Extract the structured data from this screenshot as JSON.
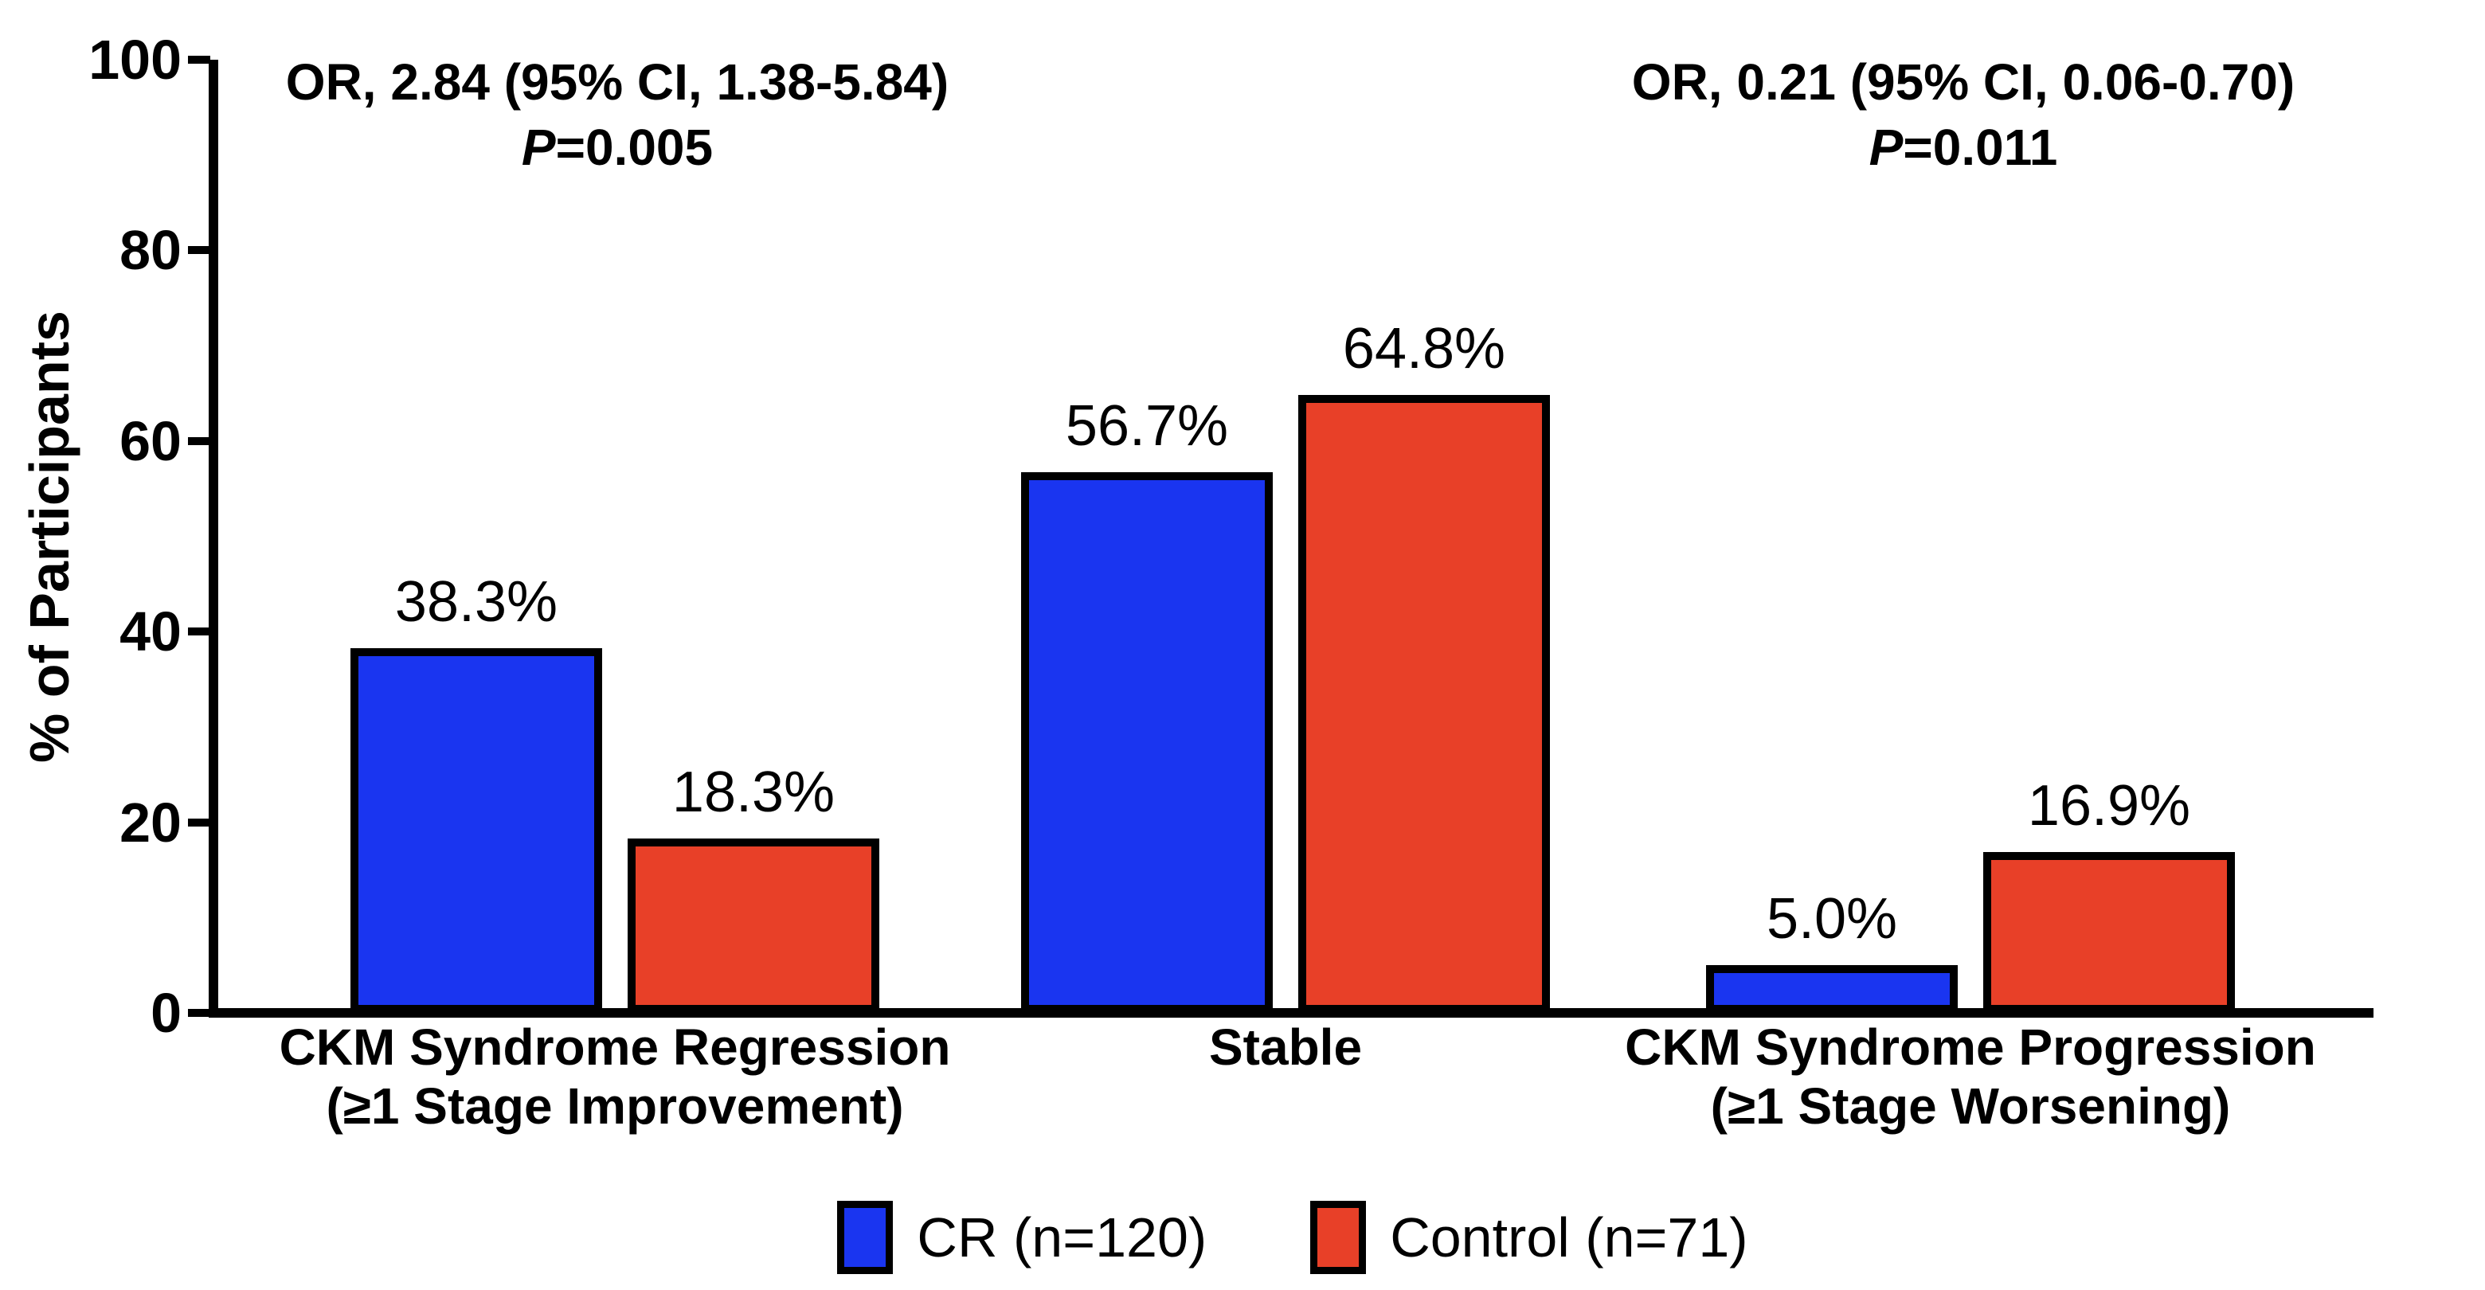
{
  "chart_data": {
    "type": "bar",
    "title": "",
    "xlabel": "",
    "ylabel": "% of Participants",
    "ylim": [
      0,
      100
    ],
    "yticks": [
      0,
      20,
      40,
      60,
      80,
      100
    ],
    "grid": false,
    "categories": [
      {
        "key": "regression",
        "lines": [
          "CKM Syndrome Regression",
          "(≥1 Stage Improvement)"
        ]
      },
      {
        "key": "stable",
        "lines": [
          "Stable"
        ]
      },
      {
        "key": "progression",
        "lines": [
          "CKM Syndrome Progression",
          "(≥1 Stage Worsening)"
        ]
      }
    ],
    "series": [
      {
        "name": "CR (n=120)",
        "color": "#1A35F0",
        "values": [
          38.3,
          56.7,
          5.0
        ]
      },
      {
        "name": "Control (n=71)",
        "color": "#E84028",
        "values": [
          18.3,
          64.8,
          16.9
        ]
      }
    ],
    "value_labels": [
      [
        "38.3%",
        "56.7%",
        "5.0%"
      ],
      [
        "18.3%",
        "64.8%",
        "16.9%"
      ]
    ],
    "annotations": [
      {
        "or_text": "OR, 2.84 (95% CI, 1.38-5.84)",
        "p_italic": "P",
        "p_text": "=0.005"
      },
      {
        "or_text": "OR, 0.21 (95% CI, 0.06-0.70)",
        "p_italic": "P",
        "p_text": "=0.011"
      }
    ],
    "legend": {
      "position": "bottom-center",
      "items": [
        {
          "label": "CR (n=120)",
          "color": "#1A35F0"
        },
        {
          "label": "Control (n=71)",
          "color": "#E84028"
        }
      ]
    },
    "axis_color": "#000000",
    "background_color": "#FFFFFF"
  }
}
